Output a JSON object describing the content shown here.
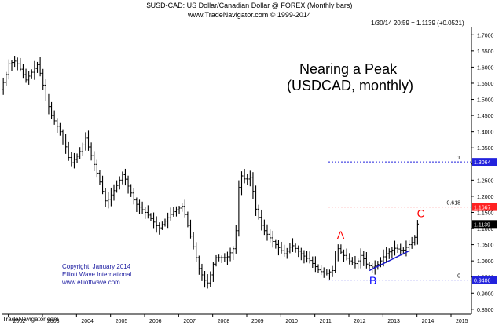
{
  "header": {
    "line1": "$USD-CAD:  US Dollar/Canadian Dollar @ FOREX  (Monthly bars)",
    "line2": "www.TradeNavigator.com © 1999-2014",
    "quote": "1/30/14 20:59 = 1.1139 (+0.0521)"
  },
  "annotation": {
    "title_line1": "Nearing a Peak",
    "title_line2": "(USDCAD, monthly)",
    "copyright": [
      "Copyright, January 2014",
      "Elliott Wave International",
      "www.elliottwave.com"
    ],
    "footer": "TradeNavigator.com"
  },
  "colors": {
    "bars": "#000000",
    "level_blue": "#2222dd",
    "level_red": "#ff2222",
    "wave_label": "#ff0000",
    "wave_label_b": "#0000ff",
    "trendline": "#1a1acc",
    "price_tag": "#000000"
  },
  "chart_data": {
    "type": "ohlc",
    "symbol": "$USD-CAD",
    "timeframe": "monthly",
    "grid": false,
    "x_ticks": [
      "2002",
      "2003",
      "2004",
      "2005",
      "2006",
      "2007",
      "2008",
      "2009",
      "2010",
      "2011",
      "2012",
      "2013",
      "2014",
      "2015"
    ],
    "y_ticks": [
      "1.7000",
      "1.6500",
      "1.6000",
      "1.5500",
      "1.5000",
      "1.4500",
      "1.4000",
      "1.3500",
      "1.3000",
      "1.2500",
      "1.2000",
      "1.1500",
      "1.1000",
      "1.0500",
      "1.0000",
      "0.9500",
      "0.9000",
      "0.8500"
    ],
    "y_range": [
      0.835,
      1.725
    ],
    "x_range": [
      2001.8,
      2015.6
    ],
    "swings": [
      {
        "date": 2001.85,
        "value": 1.53
      },
      {
        "date": 2002.0,
        "value": 1.57
      },
      {
        "date": 2002.1,
        "value": 1.61
      },
      {
        "date": 2002.3,
        "value": 1.62
      },
      {
        "date": 2002.6,
        "value": 1.56
      },
      {
        "date": 2002.95,
        "value": 1.61
      },
      {
        "date": 2003.2,
        "value": 1.5
      },
      {
        "date": 2003.35,
        "value": 1.45
      },
      {
        "date": 2003.7,
        "value": 1.38
      },
      {
        "date": 2003.9,
        "value": 1.3
      },
      {
        "date": 2004.15,
        "value": 1.33
      },
      {
        "date": 2004.35,
        "value": 1.38
      },
      {
        "date": 2004.75,
        "value": 1.25
      },
      {
        "date": 2004.95,
        "value": 1.18
      },
      {
        "date": 2005.2,
        "value": 1.22
      },
      {
        "date": 2005.45,
        "value": 1.27
      },
      {
        "date": 2005.8,
        "value": 1.18
      },
      {
        "date": 2006.2,
        "value": 1.14
      },
      {
        "date": 2006.5,
        "value": 1.1
      },
      {
        "date": 2006.9,
        "value": 1.15
      },
      {
        "date": 2007.2,
        "value": 1.17
      },
      {
        "date": 2007.45,
        "value": 1.07
      },
      {
        "date": 2007.7,
        "value": 0.97
      },
      {
        "date": 2007.85,
        "value": 0.94
      },
      {
        "date": 2007.95,
        "value": 0.93
      },
      {
        "date": 2008.15,
        "value": 1.01
      },
      {
        "date": 2008.5,
        "value": 1.01
      },
      {
        "date": 2008.7,
        "value": 1.04
      },
      {
        "date": 2008.8,
        "value": 1.12
      },
      {
        "date": 2008.87,
        "value": 1.27
      },
      {
        "date": 2009.05,
        "value": 1.25
      },
      {
        "date": 2009.2,
        "value": 1.26
      },
      {
        "date": 2009.35,
        "value": 1.16
      },
      {
        "date": 2009.55,
        "value": 1.1
      },
      {
        "date": 2009.85,
        "value": 1.06
      },
      {
        "date": 2010.2,
        "value": 1.02
      },
      {
        "date": 2010.4,
        "value": 1.05
      },
      {
        "date": 2010.7,
        "value": 1.02
      },
      {
        "date": 2010.95,
        "value": 1.0
      },
      {
        "date": 2011.2,
        "value": 0.97
      },
      {
        "date": 2011.4,
        "value": 0.96
      },
      {
        "date": 2011.6,
        "value": 0.97
      },
      {
        "date": 2011.75,
        "value": 1.04
      },
      {
        "date": 2011.9,
        "value": 1.02
      },
      {
        "date": 2012.1,
        "value": 1.0
      },
      {
        "date": 2012.3,
        "value": 0.99
      },
      {
        "date": 2012.45,
        "value": 1.02
      },
      {
        "date": 2012.6,
        "value": 0.99
      },
      {
        "date": 2012.75,
        "value": 0.98
      },
      {
        "date": 2012.95,
        "value": 0.99
      },
      {
        "date": 2013.15,
        "value": 1.02
      },
      {
        "date": 2013.45,
        "value": 1.04
      },
      {
        "date": 2013.65,
        "value": 1.03
      },
      {
        "date": 2013.85,
        "value": 1.05
      },
      {
        "date": 2014.0,
        "value": 1.0618
      },
      {
        "date": 2014.08,
        "value": 1.1139
      }
    ],
    "levels": [
      {
        "label": "1",
        "value": 1.3064,
        "tag": "1.3064",
        "color": "blue",
        "x_start": 2011.4
      },
      {
        "label": "0.618",
        "value": 1.1667,
        "tag": "1.1667",
        "color": "red",
        "x_start": 2011.4
      },
      {
        "label": "0",
        "value": 0.9406,
        "tag": "0.9406",
        "color": "blue",
        "x_start": 2011.4
      }
    ],
    "last_price": {
      "value": 1.1139,
      "tag": "1.1139"
    },
    "wave_labels": [
      {
        "text": "A",
        "date": 2011.65,
        "value": 1.068,
        "color": "red"
      },
      {
        "text": "B",
        "date": 2012.6,
        "value": 0.928,
        "color": "blue"
      },
      {
        "text": "C",
        "date": 2014.0,
        "value": 1.135,
        "color": "red"
      }
    ],
    "trendline": {
      "from": {
        "date": 2012.6,
        "value": 0.97
      },
      "to": {
        "date": 2013.75,
        "value": 1.03
      }
    }
  }
}
